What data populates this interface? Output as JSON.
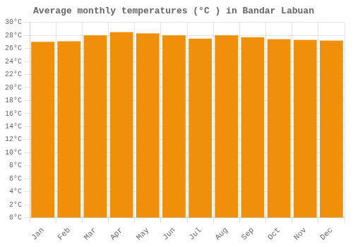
{
  "chart_data": {
    "type": "bar",
    "title": "Average monthly temperatures (°C ) in Bandar Labuan",
    "categories": [
      "Jan",
      "Feb",
      "Mar",
      "Apr",
      "May",
      "Jun",
      "Jul",
      "Aug",
      "Sep",
      "Oct",
      "Nov",
      "Dec"
    ],
    "values": [
      27.0,
      27.1,
      28.0,
      28.5,
      28.3,
      28.0,
      27.5,
      28.0,
      27.7,
      27.4,
      27.3,
      27.2
    ],
    "color": "#F0900A",
    "ylim": [
      0,
      30
    ],
    "yticks": [
      {
        "value": 0,
        "label": "0°C"
      },
      {
        "value": 2,
        "label": "2°C"
      },
      {
        "value": 4,
        "label": "4°C"
      },
      {
        "value": 6,
        "label": "6°C"
      },
      {
        "value": 8,
        "label": "8°C"
      },
      {
        "value": 10,
        "label": "10°C"
      },
      {
        "value": 12,
        "label": "12°C"
      },
      {
        "value": 14,
        "label": "14°C"
      },
      {
        "value": 16,
        "label": "16°C"
      },
      {
        "value": 18,
        "label": "18°C"
      },
      {
        "value": 20,
        "label": "20°C"
      },
      {
        "value": 22,
        "label": "22°C"
      },
      {
        "value": 24,
        "label": "24°C"
      },
      {
        "value": 26,
        "label": "26°C"
      },
      {
        "value": 28,
        "label": "28°C"
      },
      {
        "value": 30,
        "label": "30°C"
      }
    ],
    "grid": true
  }
}
